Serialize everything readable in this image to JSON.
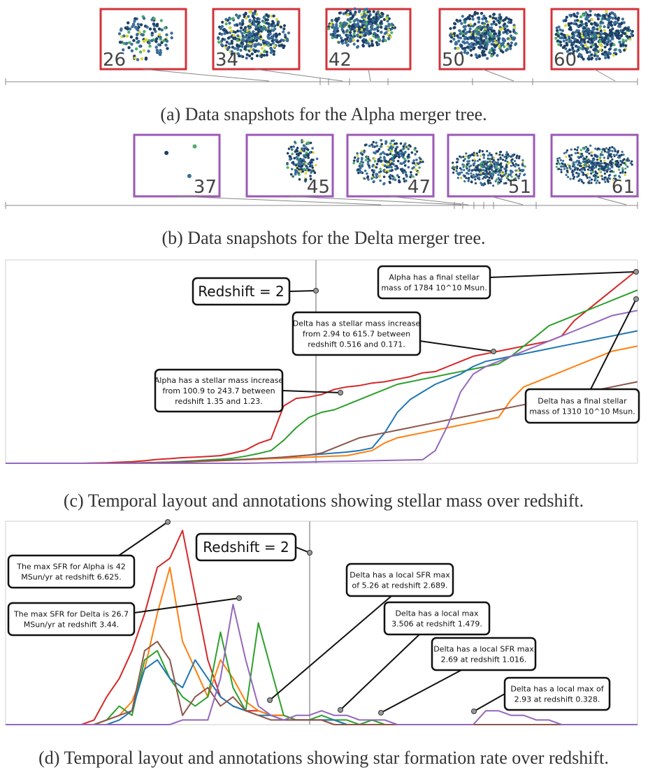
{
  "alpha_snapshots": {
    "caption": "(a) Data snapshots for the Alpha merger tree.",
    "border_color": "#d2333a",
    "items": [
      "26",
      "34",
      "42",
      "50",
      "60"
    ]
  },
  "delta_snapshots": {
    "caption": "(b) Data snapshots for the Delta merger tree.",
    "border_color": "#9b59b6",
    "items": [
      "37",
      "45",
      "47",
      "51",
      "61"
    ]
  },
  "stellar_panel": {
    "caption": "(c) Temporal layout and annotations showing stellar mass over redshift.",
    "redshift_label": "Redshift = 2",
    "annotations": [
      {
        "lines": [
          "Alpha has a final stellar",
          "mass of 1784 10^10 Msun."
        ]
      },
      {
        "lines": [
          "Delta has a stellar mass increase",
          "from 2.94 to 615.7 between",
          "redshift 0.516 and 0.171."
        ]
      },
      {
        "lines": [
          "Alpha has a stellar mass increase",
          "from 100.9 to 243.7 between",
          "redshift 1.35 and 1.23."
        ]
      },
      {
        "lines": [
          "Delta has a final stellar",
          "mass of 1310 10^10 Msun."
        ]
      }
    ]
  },
  "sfr_panel": {
    "caption": "(d) Temporal layout and annotations showing star formation rate over redshift.",
    "redshift_label": "Redshift = 2",
    "annotations": [
      {
        "lines": [
          "The max SFR for Alpha is 42",
          "MSun/yr at redshift 6.625."
        ]
      },
      {
        "lines": [
          "The max SFR for Delta is 26.7",
          "MSun/yr at redshift 3.44."
        ]
      },
      {
        "lines": [
          "Delta has a local SFR max",
          "of 5.26 at redshift 2.689."
        ]
      },
      {
        "lines": [
          "Delta has a local max",
          "3.506 at redshift 1.479."
        ]
      },
      {
        "lines": [
          "Delta has a local SFR max",
          "2.69 at redshift 1.016."
        ]
      },
      {
        "lines": [
          "Delta has a local max of",
          "2.93 at redshift 0.328."
        ]
      }
    ]
  },
  "chart_data": [
    {
      "type": "line",
      "x": [
        0,
        1,
        2,
        3,
        4,
        5,
        6,
        7,
        8,
        9,
        10,
        11,
        12,
        13,
        14,
        15,
        16,
        17,
        18,
        19,
        20,
        21,
        22,
        23,
        24,
        25,
        26,
        27,
        28,
        29,
        30,
        31,
        32,
        33,
        34,
        35,
        36,
        37,
        38,
        39,
        40,
        41,
        42,
        43,
        44,
        45,
        46,
        47,
        48,
        49,
        50
      ],
      "series": [
        {
          "color": "#d62728",
          "values": [
            0,
            0,
            0,
            0,
            0,
            0,
            0,
            1,
            2,
            4,
            6,
            10,
            15,
            18,
            22,
            24,
            27,
            30,
            40,
            52,
            78,
            95,
            225,
            255,
            260,
            270,
            290,
            300,
            305,
            315,
            320,
            330,
            340,
            355,
            360,
            380,
            400,
            420,
            430,
            440,
            450,
            460,
            470,
            480,
            500,
            560,
            600,
            640,
            680,
            720,
            760
          ]
        },
        {
          "color": "#2ca02c",
          "values": [
            0,
            0,
            0,
            0,
            0,
            0,
            0,
            0,
            0,
            0,
            1,
            2,
            3,
            5,
            7,
            10,
            13,
            16,
            20,
            28,
            38,
            50,
            90,
            140,
            180,
            200,
            210,
            230,
            250,
            270,
            290,
            310,
            320,
            330,
            340,
            350,
            360,
            370,
            380,
            390,
            420,
            460,
            500,
            540,
            560,
            580,
            600,
            620,
            640,
            660,
            680
          ]
        },
        {
          "color": "#1f77b4",
          "values": [
            0,
            0,
            0,
            0,
            0,
            0,
            0,
            0,
            0,
            0,
            0,
            1,
            2,
            4,
            6,
            8,
            10,
            12,
            14,
            16,
            18,
            20,
            24,
            28,
            32,
            36,
            40,
            44,
            50,
            60,
            120,
            200,
            250,
            280,
            310,
            330,
            350,
            380,
            400,
            410,
            420,
            430,
            440,
            450,
            460,
            470,
            480,
            490,
            500,
            510,
            520
          ]
        },
        {
          "color": "#ff7f0e",
          "values": [
            0,
            0,
            0,
            0,
            0,
            0,
            0,
            0,
            0,
            0,
            0,
            1,
            2,
            3,
            4,
            6,
            8,
            10,
            12,
            14,
            16,
            18,
            20,
            22,
            24,
            26,
            28,
            30,
            40,
            50,
            80,
            100,
            110,
            120,
            130,
            140,
            150,
            160,
            170,
            180,
            250,
            300,
            320,
            340,
            360,
            380,
            400,
            420,
            440,
            450,
            460
          ]
        },
        {
          "color": "#8c564b",
          "values": [
            0,
            0,
            0,
            0,
            0,
            0,
            0,
            0,
            0,
            0,
            1,
            2,
            3,
            4,
            5,
            7,
            9,
            11,
            13,
            15,
            18,
            21,
            24,
            28,
            32,
            40,
            60,
            80,
            100,
            110,
            120,
            130,
            140,
            150,
            160,
            170,
            180,
            190,
            200,
            210,
            220,
            230,
            240,
            250,
            260,
            270,
            280,
            290,
            300,
            310,
            320
          ]
        },
        {
          "color": "#9467bd",
          "values": [
            0,
            0,
            0,
            0,
            0,
            0,
            0,
            0,
            0,
            0,
            0,
            0,
            0,
            0,
            0,
            0,
            0,
            0,
            0,
            0,
            1,
            2,
            3,
            4,
            5,
            6,
            7,
            8,
            9,
            10,
            11,
            12,
            13,
            14,
            50,
            150,
            280,
            350,
            380,
            400,
            420,
            440,
            460,
            480,
            500,
            520,
            540,
            560,
            580,
            590,
            600
          ]
        }
      ]
    },
    {
      "type": "line",
      "x": [
        0,
        1,
        2,
        3,
        4,
        5,
        6,
        7,
        8,
        9,
        10,
        11,
        12,
        13,
        14,
        15,
        16,
        17,
        18,
        19,
        20,
        21,
        22,
        23,
        24,
        25,
        26,
        27,
        28,
        29,
        30,
        31,
        32,
        33,
        34,
        35,
        36,
        37,
        38,
        39,
        40,
        41,
        42,
        43,
        44,
        45,
        46,
        47,
        48,
        49,
        50
      ],
      "series": [
        {
          "color": "#d62728",
          "values": [
            0,
            0,
            0,
            0,
            0,
            0,
            0,
            1,
            6,
            10,
            16,
            24,
            34,
            36,
            42,
            28,
            14,
            6,
            4,
            3,
            3,
            2,
            2,
            1,
            1,
            1,
            1,
            0,
            0,
            0,
            0,
            0,
            0,
            0,
            0,
            0,
            0,
            0,
            0,
            0,
            0,
            0,
            0,
            0,
            0,
            0,
            0,
            0,
            0,
            0,
            0
          ]
        },
        {
          "color": "#ff7f0e",
          "values": [
            0,
            0,
            0,
            0,
            0,
            0,
            0,
            0,
            1,
            2,
            5,
            12,
            24,
            34,
            18,
            12,
            6,
            14,
            10,
            5,
            3,
            2,
            2,
            1,
            1,
            1,
            0,
            0,
            0,
            0,
            0,
            0,
            0,
            0,
            0,
            0,
            0,
            0,
            0,
            0,
            0,
            0,
            0,
            0,
            0,
            0,
            0,
            0,
            0,
            0,
            0
          ]
        },
        {
          "color": "#2ca02c",
          "values": [
            0,
            0,
            0,
            0,
            0,
            0,
            0,
            0,
            1,
            4,
            2,
            14,
            16,
            10,
            6,
            4,
            6,
            20,
            8,
            3,
            22,
            12,
            2,
            1,
            1,
            2,
            1,
            1,
            0,
            1,
            0,
            0,
            0,
            0,
            0,
            0,
            0,
            0,
            0,
            0,
            0,
            0,
            0,
            0,
            0,
            0,
            0,
            0,
            0,
            0,
            0
          ]
        },
        {
          "color": "#1f77b4",
          "values": [
            0,
            0,
            0,
            0,
            0,
            0,
            0,
            0,
            0,
            1,
            3,
            12,
            14,
            10,
            8,
            14,
            10,
            6,
            4,
            3,
            2,
            2,
            1,
            1,
            1,
            1,
            1,
            0,
            0,
            0,
            0,
            0,
            0,
            0,
            0,
            0,
            0,
            0,
            0,
            0,
            0,
            0,
            0,
            0,
            0,
            0,
            0,
            0,
            0,
            0,
            0
          ]
        },
        {
          "color": "#8c564b",
          "values": [
            0,
            0,
            0,
            0,
            0,
            0,
            0,
            0,
            1,
            2,
            3,
            16,
            18,
            14,
            2,
            6,
            8,
            4,
            6,
            3,
            2,
            1,
            1,
            1,
            1,
            1,
            0,
            0,
            0,
            0,
            0,
            0,
            0,
            0,
            0,
            0,
            0,
            0,
            0,
            0,
            0,
            0,
            0,
            0,
            0,
            0,
            0,
            0,
            0,
            0,
            0
          ]
        },
        {
          "color": "#9467bd",
          "values": [
            0,
            0,
            0,
            0,
            0,
            0,
            0,
            0,
            0,
            0,
            0,
            0,
            0,
            0,
            1,
            1,
            1,
            10,
            26,
            14,
            4,
            2,
            1,
            2,
            2,
            3,
            2,
            2,
            1,
            1,
            1,
            0,
            0,
            0,
            0,
            0,
            0,
            0,
            3,
            3,
            2,
            2,
            1,
            1,
            0,
            0,
            0,
            0,
            0,
            0,
            0
          ]
        }
      ]
    }
  ]
}
